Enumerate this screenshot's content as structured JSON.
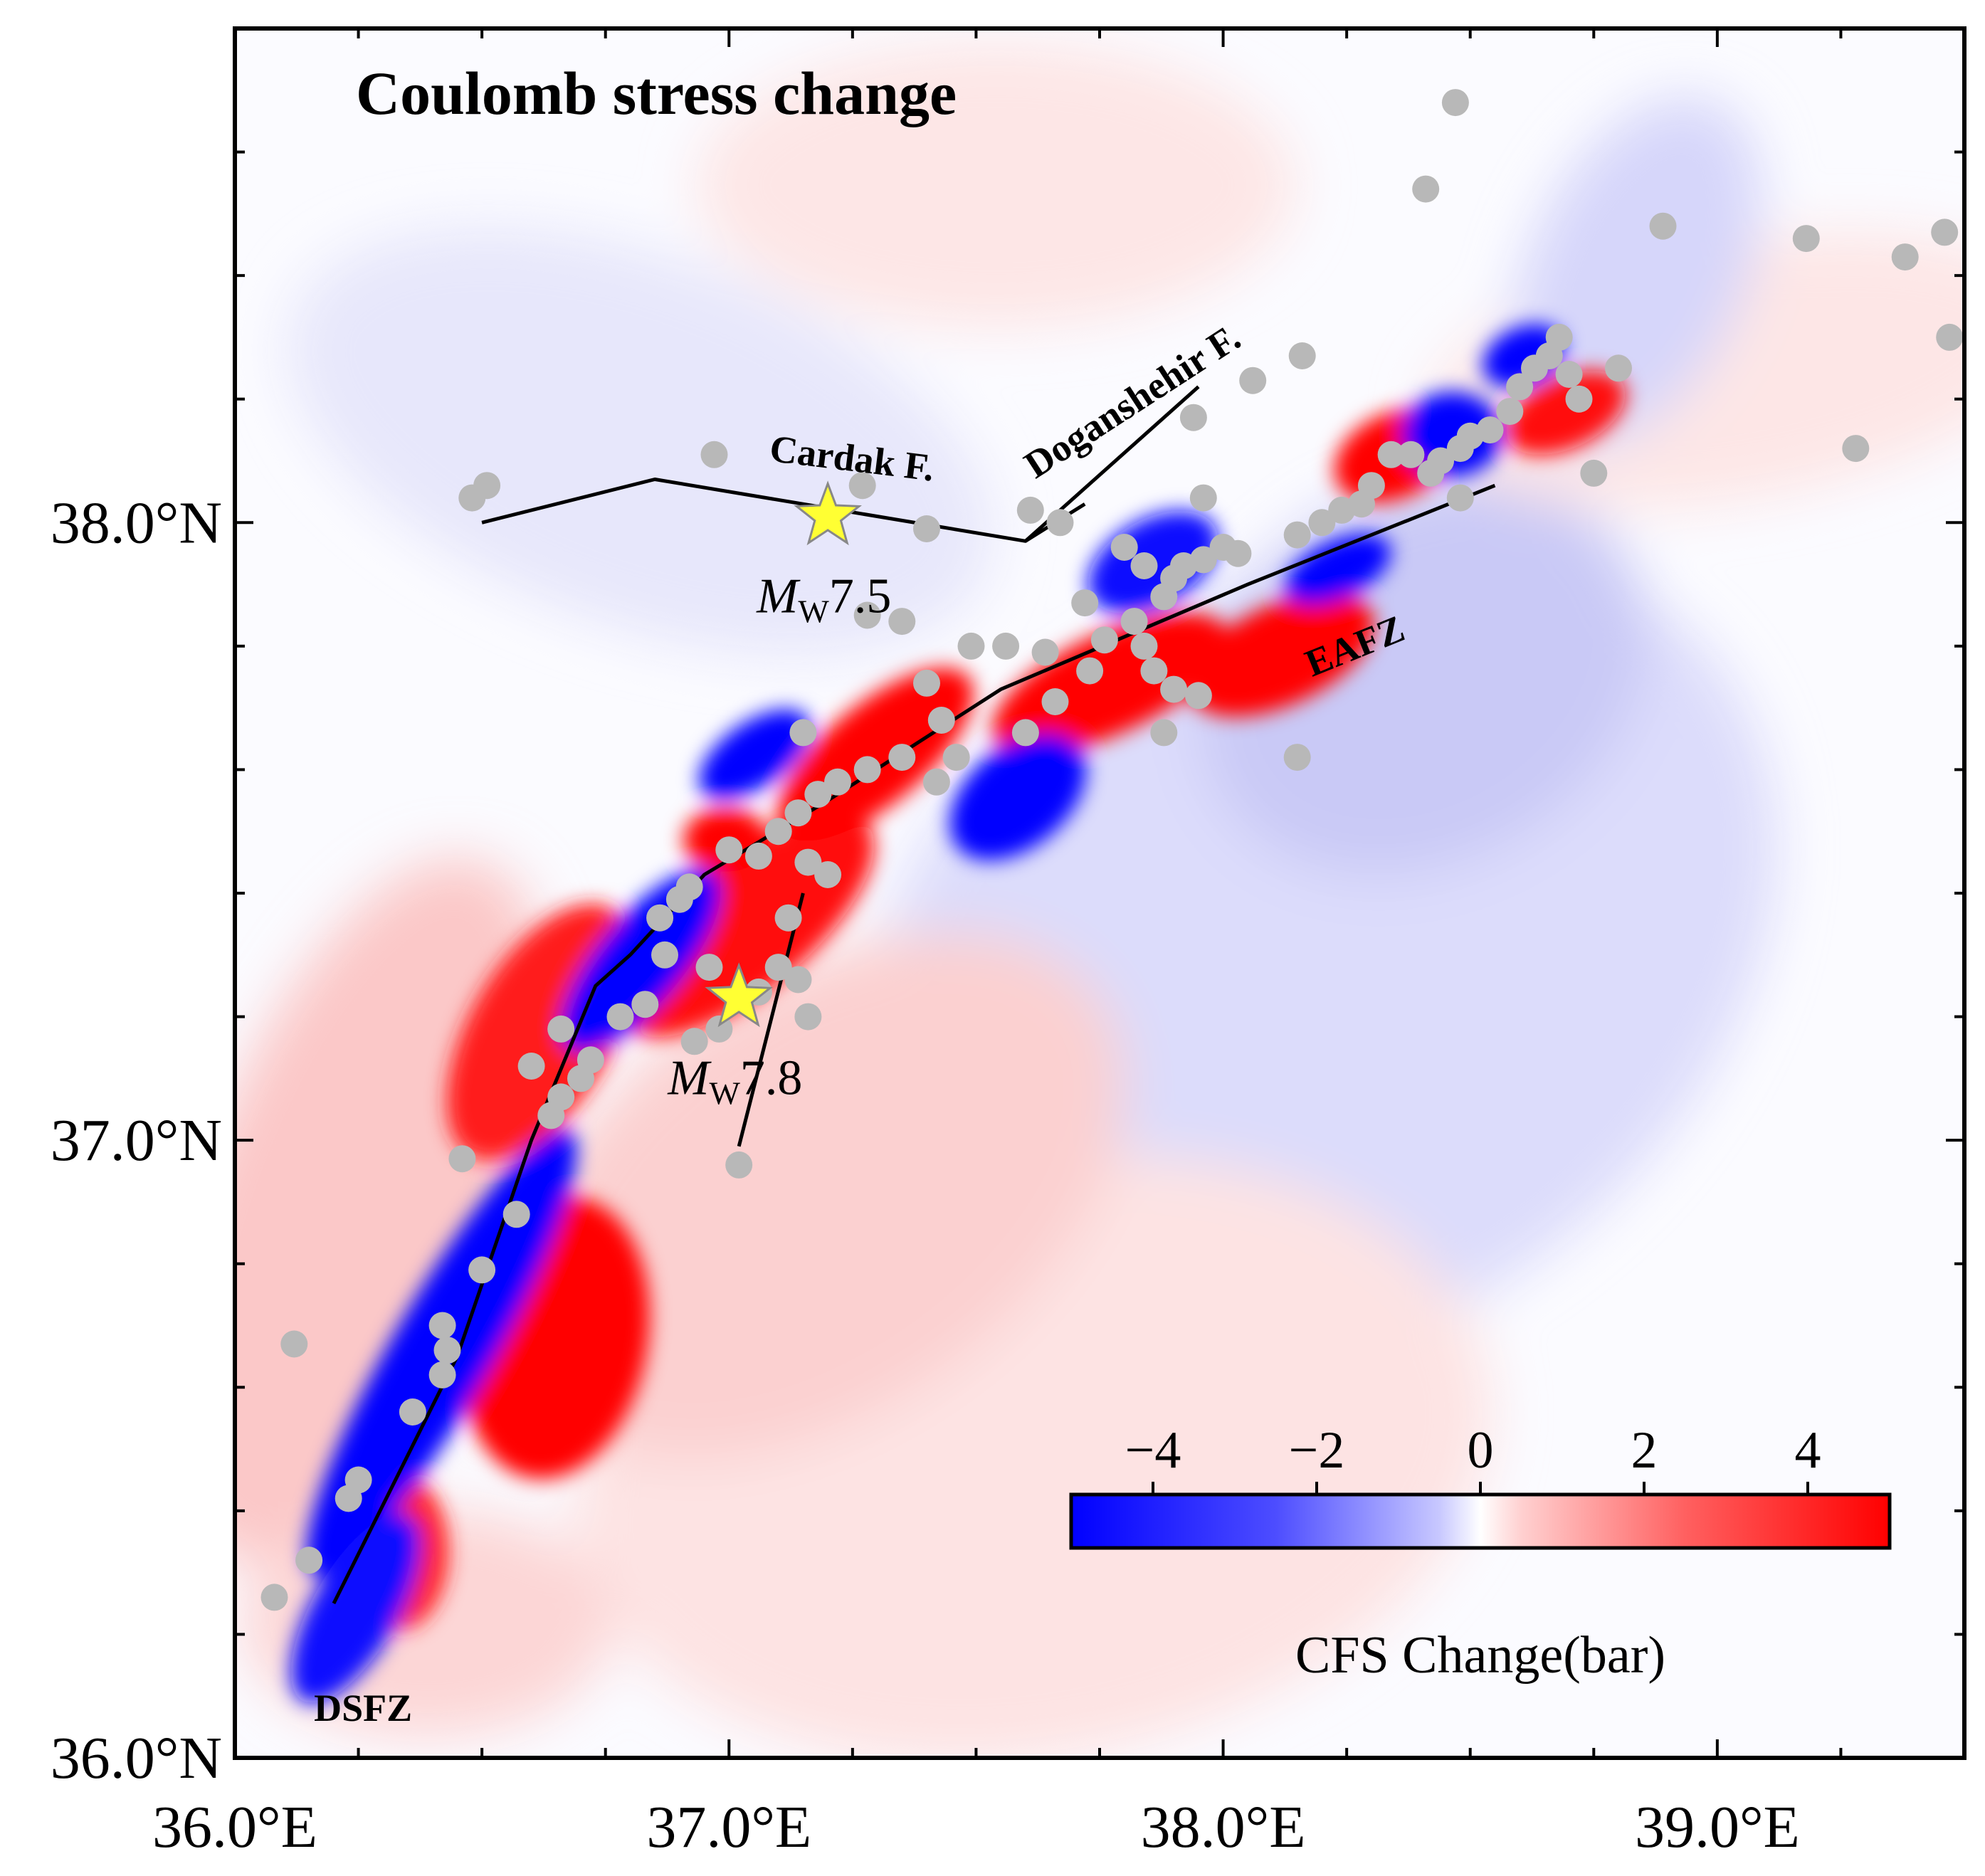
{
  "title": "Coulomb stress change",
  "axes": {
    "lon_ticks": [
      {
        "value": 36.0,
        "label": "36.0°E"
      },
      {
        "value": 37.0,
        "label": "37.0°E"
      },
      {
        "value": 38.0,
        "label": "38.0°E"
      },
      {
        "value": 39.0,
        "label": "39.0°E"
      }
    ],
    "lat_ticks": [
      {
        "value": 36.0,
        "label": "36.0°N"
      },
      {
        "value": 37.0,
        "label": "37.0°N"
      },
      {
        "value": 38.0,
        "label": "38.0°N"
      }
    ],
    "lon_range": [
      36.0,
      39.5
    ],
    "lat_range": [
      36.0,
      38.8
    ]
  },
  "faults": [
    {
      "name": "Cardak F.",
      "points": [
        [
          36.5,
          38.0
        ],
        [
          36.85,
          38.07
        ],
        [
          37.6,
          37.97
        ],
        [
          37.95,
          38.22
        ]
      ]
    },
    {
      "name": "Doganshehir F.",
      "points": [
        [
          37.6,
          37.97
        ],
        [
          37.72,
          38.03
        ]
      ]
    },
    {
      "name": "EAFZ",
      "points": [
        [
          36.2,
          36.25
        ],
        [
          36.45,
          36.65
        ],
        [
          36.6,
          37.0
        ],
        [
          36.73,
          37.25
        ],
        [
          36.8,
          37.3
        ],
        [
          36.95,
          37.43
        ],
        [
          37.2,
          37.55
        ],
        [
          37.55,
          37.73
        ],
        [
          38.05,
          37.9
        ],
        [
          38.55,
          38.06
        ]
      ]
    },
    {
      "name": "branch",
      "points": [
        [
          37.15,
          37.4
        ],
        [
          37.02,
          36.99
        ]
      ]
    }
  ],
  "fault_labels": [
    {
      "text": "Cardak F.",
      "lon": 37.08,
      "lat": 38.1,
      "rotate": 7
    },
    {
      "text": "Doganshehir F.",
      "lon": 37.62,
      "lat": 38.07,
      "rotate": -33
    },
    {
      "text": "EAFZ",
      "lon": 38.18,
      "lat": 37.75,
      "rotate": -22
    },
    {
      "text": "DSFZ",
      "lon": 36.16,
      "lat": 36.06,
      "rotate": 0
    }
  ],
  "epicenters": [
    {
      "label_m": "M",
      "label_sub": "W",
      "label_mag": "7.5",
      "lon": 37.2,
      "lat": 38.01
    },
    {
      "label_m": "M",
      "label_sub": "W",
      "label_mag": "7.8",
      "lon": 37.02,
      "lat": 37.23
    }
  ],
  "aftershocks": [
    [
      36.12,
      36.67
    ],
    [
      36.08,
      36.26
    ],
    [
      36.15,
      36.32
    ],
    [
      36.25,
      36.45
    ],
    [
      36.23,
      36.42
    ],
    [
      36.36,
      36.56
    ],
    [
      36.42,
      36.62
    ],
    [
      36.43,
      36.66
    ],
    [
      36.42,
      36.7
    ],
    [
      36.5,
      36.79
    ],
    [
      36.57,
      36.88
    ],
    [
      36.46,
      36.97
    ],
    [
      36.64,
      37.04
    ],
    [
      36.66,
      37.07
    ],
    [
      36.7,
      37.1
    ],
    [
      36.72,
      37.13
    ],
    [
      36.66,
      37.18
    ],
    [
      36.6,
      37.12
    ],
    [
      36.78,
      37.2
    ],
    [
      36.83,
      37.22
    ],
    [
      36.87,
      37.3
    ],
    [
      36.86,
      37.36
    ],
    [
      36.9,
      37.39
    ],
    [
      36.92,
      37.41
    ],
    [
      36.96,
      37.28
    ],
    [
      36.93,
      37.16
    ],
    [
      36.98,
      37.18
    ],
    [
      37.06,
      37.24
    ],
    [
      37.1,
      37.28
    ],
    [
      37.12,
      37.36
    ],
    [
      37.16,
      37.2
    ],
    [
      37.14,
      37.26
    ],
    [
      37.02,
      36.96
    ],
    [
      37.0,
      37.47
    ],
    [
      37.06,
      37.46
    ],
    [
      37.1,
      37.5
    ],
    [
      37.14,
      37.53
    ],
    [
      37.18,
      37.56
    ],
    [
      37.22,
      37.58
    ],
    [
      37.28,
      37.6
    ],
    [
      37.35,
      37.62
    ],
    [
      37.42,
      37.58
    ],
    [
      37.46,
      37.62
    ],
    [
      37.16,
      37.45
    ],
    [
      37.2,
      37.43
    ],
    [
      37.15,
      37.66
    ],
    [
      37.4,
      37.74
    ],
    [
      37.43,
      37.68
    ],
    [
      37.49,
      37.8
    ],
    [
      37.56,
      37.8
    ],
    [
      37.6,
      37.66
    ],
    [
      37.64,
      37.79
    ],
    [
      37.72,
      37.87
    ],
    [
      37.76,
      37.81
    ],
    [
      37.82,
      37.84
    ],
    [
      37.84,
      37.93
    ],
    [
      37.88,
      37.88
    ],
    [
      37.9,
      37.91
    ],
    [
      37.92,
      37.93
    ],
    [
      37.96,
      37.94
    ],
    [
      38.0,
      37.96
    ],
    [
      38.03,
      37.95
    ],
    [
      37.86,
      37.76
    ],
    [
      37.9,
      37.73
    ],
    [
      37.95,
      37.72
    ],
    [
      37.88,
      37.66
    ],
    [
      37.84,
      37.8
    ],
    [
      37.73,
      37.76
    ],
    [
      37.66,
      37.71
    ],
    [
      37.35,
      37.84
    ],
    [
      37.4,
      37.99
    ],
    [
      37.61,
      38.02
    ],
    [
      37.67,
      38.0
    ],
    [
      37.8,
      37.96
    ],
    [
      37.96,
      38.04
    ],
    [
      37.94,
      38.17
    ],
    [
      38.06,
      38.23
    ],
    [
      38.15,
      37.62
    ],
    [
      38.15,
      37.98
    ],
    [
      38.2,
      38.0
    ],
    [
      38.24,
      38.02
    ],
    [
      38.28,
      38.03
    ],
    [
      38.3,
      38.06
    ],
    [
      38.34,
      38.11
    ],
    [
      38.38,
      38.11
    ],
    [
      38.42,
      38.08
    ],
    [
      38.44,
      38.1
    ],
    [
      38.48,
      38.12
    ],
    [
      38.5,
      38.14
    ],
    [
      38.54,
      38.15
    ],
    [
      38.58,
      38.18
    ],
    [
      38.6,
      38.22
    ],
    [
      38.63,
      38.25
    ],
    [
      38.66,
      38.27
    ],
    [
      38.68,
      38.3
    ],
    [
      38.7,
      38.24
    ],
    [
      38.72,
      38.2
    ],
    [
      38.75,
      38.08
    ],
    [
      38.8,
      38.25
    ],
    [
      38.48,
      38.04
    ],
    [
      38.47,
      38.68
    ],
    [
      38.41,
      38.54
    ],
    [
      38.89,
      38.48
    ],
    [
      39.18,
      38.46
    ],
    [
      39.28,
      38.12
    ],
    [
      39.38,
      38.43
    ],
    [
      39.46,
      38.47
    ],
    [
      39.47,
      38.3
    ],
    [
      38.16,
      38.27
    ],
    [
      37.28,
      37.85
    ],
    [
      36.48,
      38.04
    ],
    [
      36.51,
      38.06
    ],
    [
      36.97,
      38.11
    ],
    [
      37.27,
      38.06
    ]
  ],
  "colorbar": {
    "ticks": [
      {
        "value": -4,
        "label": "−4"
      },
      {
        "value": -2,
        "label": "−2"
      },
      {
        "value": 0,
        "label": "0"
      },
      {
        "value": 2,
        "label": "2"
      },
      {
        "value": 4,
        "label": "4"
      }
    ],
    "range": [
      -5,
      5
    ],
    "label": "CFS Change(bar)",
    "colors": {
      "negative": "#0000ff",
      "zero": "#ffffff",
      "positive": "#ff0000"
    }
  },
  "colors": {
    "aftershock": "#b8b8b8",
    "star_fill": "#ffff33",
    "star_stroke": "#888888",
    "fault_line": "#000000",
    "frame": "#000000"
  }
}
